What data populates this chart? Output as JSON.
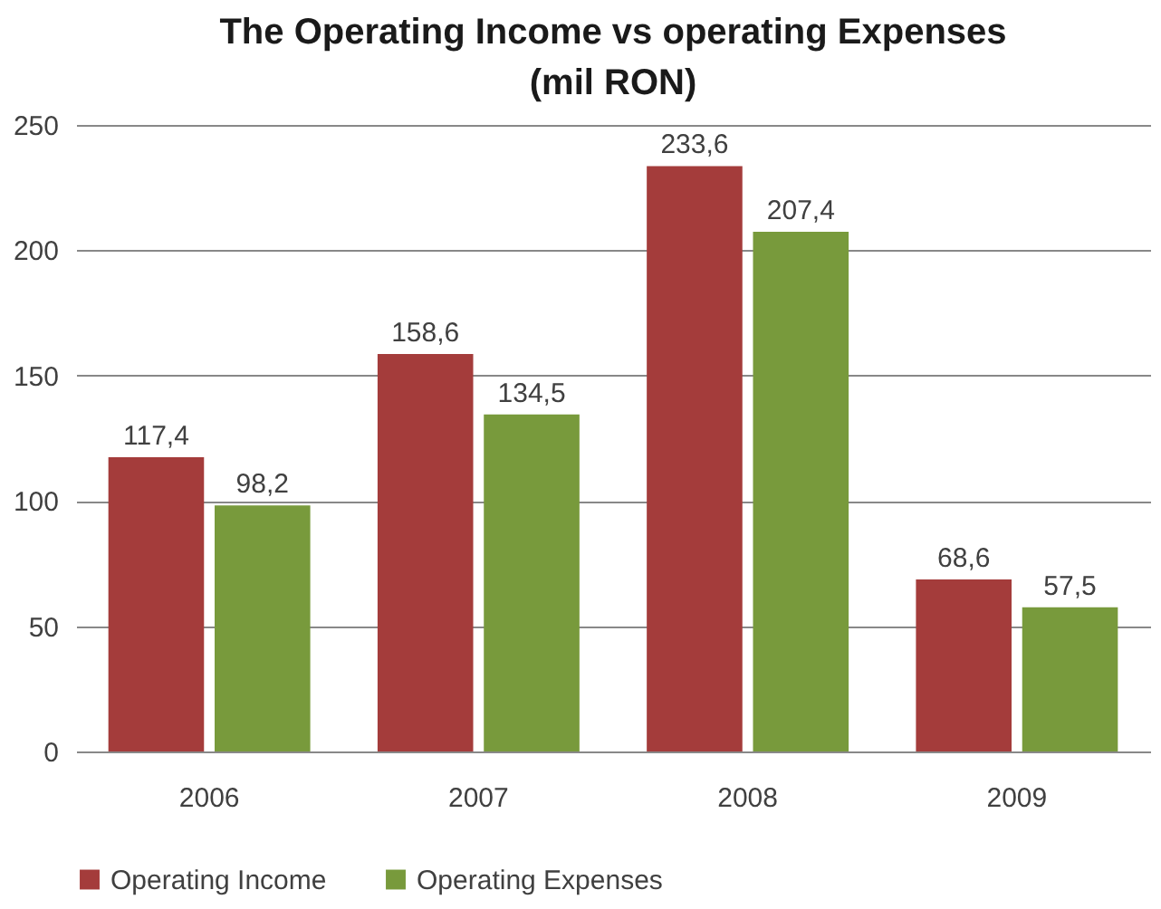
{
  "chart_data": {
    "type": "bar",
    "title": "The Operating Income vs operating Expenses  (mil RON)",
    "categories": [
      "2006",
      "2007",
      "2008",
      "2009"
    ],
    "series": [
      {
        "name": "Operating Income",
        "color": "#a43c3b",
        "values": [
          117.4,
          158.6,
          233.6,
          68.6
        ],
        "value_labels": [
          "117,4",
          "158,6",
          "233,6",
          "68,6"
        ]
      },
      {
        "name": "Operating Expenses",
        "color": "#789a3c",
        "values": [
          98.2,
          134.5,
          207.4,
          57.5
        ],
        "value_labels": [
          "98,2",
          "134,5",
          "207,4",
          "57,5"
        ]
      }
    ],
    "ylim": [
      0,
      250
    ],
    "yticks": [
      0,
      50,
      100,
      150,
      200,
      250
    ],
    "grid": "y",
    "legend": "bottom"
  }
}
